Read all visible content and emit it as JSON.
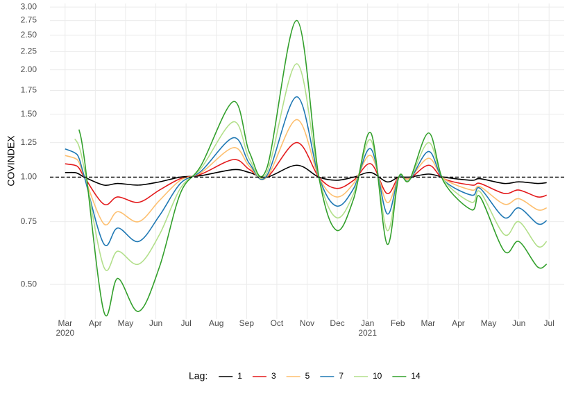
{
  "chart_data": {
    "type": "line",
    "y_label": "COVINDEX",
    "log_scale_y": true,
    "grid": true,
    "hline": 1.0,
    "hline_style": "dashed",
    "xlim": [
      -0.5,
      16.5
    ],
    "ylim": [
      0.4,
      3.07
    ],
    "xticks": [
      {
        "value": 0,
        "label": "Mar\n2020"
      },
      {
        "value": 1,
        "label": "Apr"
      },
      {
        "value": 2,
        "label": "May"
      },
      {
        "value": 3,
        "label": "Jun"
      },
      {
        "value": 4,
        "label": "Jul"
      },
      {
        "value": 5,
        "label": "Aug"
      },
      {
        "value": 6,
        "label": "Sep"
      },
      {
        "value": 7,
        "label": "Oct"
      },
      {
        "value": 8,
        "label": "Nov"
      },
      {
        "value": 9,
        "label": "Dec"
      },
      {
        "value": 10,
        "label": "Jan\n2021"
      },
      {
        "value": 11,
        "label": "Feb"
      },
      {
        "value": 12,
        "label": "Mar"
      },
      {
        "value": 13,
        "label": "Apr"
      },
      {
        "value": 14,
        "label": "May"
      },
      {
        "value": 15,
        "label": "Jun"
      },
      {
        "value": 16,
        "label": "Jul"
      }
    ],
    "yticks": [
      {
        "value": 0.5,
        "label": "0.50"
      },
      {
        "value": 0.75,
        "label": "0.75"
      },
      {
        "value": 1.0,
        "label": "1.00"
      },
      {
        "value": 1.25,
        "label": "1.25"
      },
      {
        "value": 1.5,
        "label": "1.50"
      },
      {
        "value": 1.75,
        "label": "1.75"
      },
      {
        "value": 2.0,
        "label": "2.00"
      },
      {
        "value": 2.25,
        "label": "2.25"
      },
      {
        "value": 2.5,
        "label": "2.50"
      },
      {
        "value": 2.75,
        "label": "2.75"
      },
      {
        "value": 3.0,
        "label": "3.00"
      }
    ],
    "legend_title": "Lag:",
    "legend_position": "bottom",
    "x": [
      0,
      0.32,
      0.46,
      0.64,
      1.28,
      1.74,
      2.43,
      3.12,
      3.81,
      4.5,
      5.57,
      6.1,
      6.67,
      7.66,
      8.39,
      8.97,
      9.54,
      10.11,
      10.64,
      11.03,
      11.38,
      12.02,
      12.52,
      13.44,
      13.72,
      14.52,
      15.0,
      15.62,
      15.92
    ],
    "series": [
      {
        "name": "1",
        "color": "#000000",
        "values": [
          1.03,
          1.03,
          1.02,
          1.0,
          0.95,
          0.96,
          0.95,
          0.97,
          1.0,
          1.01,
          1.05,
          1.03,
          1.0,
          1.08,
          1.0,
          0.98,
          1.0,
          1.03,
          0.97,
          1.0,
          1.0,
          1.02,
          1.0,
          0.98,
          0.99,
          0.96,
          0.97,
          0.96,
          0.965
        ]
      },
      {
        "name": "3",
        "color": "#E31A1C",
        "values": [
          1.09,
          1.08,
          1.06,
          1.0,
          0.84,
          0.88,
          0.85,
          0.92,
          0.99,
          1.02,
          1.12,
          1.05,
          1.0,
          1.25,
          1.0,
          0.93,
          0.98,
          1.09,
          0.9,
          1.0,
          0.99,
          1.08,
          0.99,
          0.95,
          0.96,
          0.9,
          0.92,
          0.88,
          0.89
        ]
      },
      {
        "name": "5",
        "color": "#FDBF6F",
        "values": [
          1.15,
          1.13,
          1.1,
          1.0,
          0.74,
          0.8,
          0.75,
          0.86,
          0.98,
          1.03,
          1.21,
          1.07,
          1.0,
          1.45,
          1.0,
          0.88,
          0.96,
          1.15,
          0.85,
          1.0,
          0.99,
          1.13,
          0.99,
          0.92,
          0.94,
          0.84,
          0.87,
          0.81,
          0.82
        ]
      },
      {
        "name": "7",
        "color": "#1F78B4",
        "values": [
          1.2,
          1.17,
          1.13,
          1.0,
          0.65,
          0.72,
          0.66,
          0.78,
          0.96,
          1.04,
          1.29,
          1.09,
          1.01,
          1.68,
          1.0,
          0.83,
          0.93,
          1.2,
          0.79,
          1.0,
          0.98,
          1.18,
          0.98,
          0.89,
          0.93,
          0.77,
          0.82,
          0.74,
          0.755
        ]
      },
      {
        "name": "10",
        "color": "#B2DF8A",
        "values": [
          null,
          1.28,
          1.22,
          1.05,
          0.56,
          0.62,
          0.57,
          0.69,
          0.93,
          1.06,
          1.43,
          1.12,
          1.03,
          2.08,
          1.0,
          0.77,
          0.9,
          1.27,
          0.71,
          1.0,
          0.98,
          1.25,
          0.98,
          0.85,
          0.91,
          0.69,
          0.75,
          0.64,
          0.66
        ]
      },
      {
        "name": "14",
        "color": "#33A02C",
        "values": [
          null,
          null,
          1.36,
          1.12,
          0.42,
          0.52,
          0.42,
          0.56,
          0.9,
          1.08,
          1.63,
          1.17,
          1.06,
          2.75,
          1.0,
          0.71,
          0.87,
          1.33,
          0.65,
          1.0,
          0.98,
          1.33,
          0.97,
          0.81,
          0.88,
          0.62,
          0.66,
          0.56,
          0.57
        ]
      }
    ]
  }
}
